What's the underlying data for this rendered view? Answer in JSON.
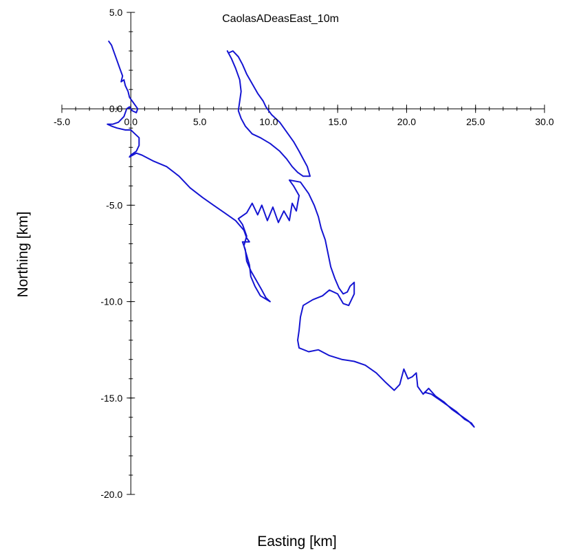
{
  "chart_data": {
    "type": "line",
    "title": "CaolasADeasEast_10m",
    "xlabel": "Easting [km]",
    "ylabel": "Northing [km]",
    "xlim": [
      -5.0,
      30.0
    ],
    "ylim": [
      -20.0,
      5.0
    ],
    "x_ticks": [
      -5.0,
      0.0,
      5.0,
      10.0,
      15.0,
      20.0,
      25.0,
      30.0
    ],
    "x_tick_labels": [
      "-5.0",
      "0.0",
      "5.0",
      "10.0",
      "15.0",
      "20.0",
      "25.0",
      "30.0"
    ],
    "y_ticks": [
      5.0,
      0.0,
      -5.0,
      -10.0,
      -15.0,
      -20.0
    ],
    "y_tick_labels": [
      "5.0",
      "0.0",
      "-5.0",
      "-10.0",
      "-15.0",
      "-20.0"
    ],
    "x_minor_step": 1.0,
    "y_minor_step": 1.0,
    "grid": false,
    "legend": "none",
    "series_color": "#1414d2",
    "series": [
      {
        "points": [
          [
            -1.6,
            3.5
          ],
          [
            -1.4,
            3.3
          ],
          [
            -1.2,
            2.9
          ],
          [
            -1.0,
            2.5
          ],
          [
            -0.8,
            2.1
          ],
          [
            -0.6,
            1.7
          ],
          [
            -0.7,
            1.4
          ],
          [
            -0.5,
            1.5
          ],
          [
            -0.4,
            1.2
          ],
          [
            -0.2,
            0.9
          ],
          [
            -0.1,
            0.6
          ],
          [
            0.1,
            0.4
          ],
          [
            0.3,
            0.2
          ],
          [
            0.5,
            0.0
          ],
          [
            0.4,
            -0.2
          ],
          [
            0.1,
            -0.1
          ],
          [
            -0.1,
            0.1
          ],
          [
            -0.3,
            0.0
          ],
          [
            -0.5,
            -0.4
          ],
          [
            -0.9,
            -0.7
          ],
          [
            -1.3,
            -0.8
          ],
          [
            -1.7,
            -0.8
          ],
          [
            -1.4,
            -0.9
          ],
          [
            -1.0,
            -1.0
          ],
          [
            -0.4,
            -1.1
          ],
          [
            0.0,
            -1.1
          ],
          [
            0.3,
            -1.3
          ],
          [
            0.6,
            -1.5
          ],
          [
            0.6,
            -1.9
          ],
          [
            0.4,
            -2.2
          ],
          [
            0.0,
            -2.4
          ],
          [
            -0.1,
            -2.5
          ],
          [
            0.4,
            -2.3
          ],
          [
            0.8,
            -2.4
          ],
          [
            1.6,
            -2.7
          ],
          [
            2.6,
            -3.0
          ],
          [
            3.5,
            -3.5
          ],
          [
            4.3,
            -4.1
          ],
          [
            5.2,
            -4.6
          ],
          [
            6.0,
            -5.0
          ],
          [
            6.8,
            -5.4
          ],
          [
            7.6,
            -5.8
          ],
          [
            8.2,
            -6.3
          ],
          [
            8.4,
            -6.7
          ],
          [
            8.6,
            -6.9
          ],
          [
            8.1,
            -6.9
          ],
          [
            8.3,
            -7.3
          ],
          [
            8.4,
            -7.9
          ],
          [
            8.7,
            -8.4
          ],
          [
            9.1,
            -8.9
          ],
          [
            9.5,
            -9.4
          ],
          [
            9.8,
            -9.8
          ],
          [
            10.1,
            -10.0
          ],
          [
            9.4,
            -9.7
          ],
          [
            9.0,
            -9.2
          ],
          [
            8.7,
            -8.7
          ],
          [
            8.6,
            -8.1
          ],
          [
            8.4,
            -7.6
          ],
          [
            8.2,
            -7.1
          ],
          [
            8.4,
            -6.6
          ],
          [
            8.1,
            -6.0
          ],
          [
            7.8,
            -5.7
          ],
          [
            8.4,
            -5.4
          ],
          [
            8.8,
            -4.9
          ],
          [
            9.2,
            -5.5
          ],
          [
            9.5,
            -5.0
          ],
          [
            9.9,
            -5.8
          ],
          [
            10.3,
            -5.1
          ],
          [
            10.7,
            -5.9
          ],
          [
            11.1,
            -5.3
          ],
          [
            11.5,
            -5.8
          ],
          [
            11.7,
            -4.9
          ],
          [
            12.0,
            -5.3
          ],
          [
            12.2,
            -4.5
          ],
          [
            11.8,
            -4.0
          ],
          [
            11.5,
            -3.7
          ],
          [
            12.3,
            -3.8
          ],
          [
            12.9,
            -4.4
          ],
          [
            13.3,
            -5.0
          ],
          [
            13.6,
            -5.6
          ],
          [
            13.8,
            -6.2
          ],
          [
            14.1,
            -6.8
          ],
          [
            14.3,
            -7.5
          ],
          [
            14.5,
            -8.2
          ],
          [
            14.8,
            -8.8
          ],
          [
            15.1,
            -9.3
          ],
          [
            15.4,
            -9.6
          ],
          [
            15.7,
            -9.5
          ],
          [
            15.9,
            -9.2
          ],
          [
            16.2,
            -9.0
          ],
          [
            16.2,
            -9.6
          ],
          [
            15.8,
            -10.2
          ],
          [
            15.4,
            -10.1
          ],
          [
            15.0,
            -9.6
          ],
          [
            14.4,
            -9.4
          ],
          [
            13.9,
            -9.7
          ],
          [
            13.2,
            -9.9
          ],
          [
            12.5,
            -10.2
          ],
          [
            12.3,
            -10.8
          ],
          [
            12.2,
            -11.5
          ],
          [
            12.1,
            -12.0
          ],
          [
            12.2,
            -12.4
          ],
          [
            12.9,
            -12.6
          ],
          [
            13.6,
            -12.5
          ],
          [
            14.4,
            -12.8
          ],
          [
            15.3,
            -13.0
          ],
          [
            16.2,
            -13.1
          ],
          [
            17.0,
            -13.3
          ],
          [
            17.8,
            -13.7
          ],
          [
            18.5,
            -14.2
          ],
          [
            19.1,
            -14.6
          ],
          [
            19.5,
            -14.3
          ],
          [
            19.8,
            -13.5
          ],
          [
            20.1,
            -14.0
          ],
          [
            20.4,
            -13.9
          ],
          [
            20.7,
            -13.7
          ],
          [
            20.8,
            -14.4
          ],
          [
            21.2,
            -14.8
          ],
          [
            21.6,
            -14.5
          ],
          [
            22.1,
            -14.9
          ],
          [
            22.7,
            -15.2
          ],
          [
            23.3,
            -15.6
          ],
          [
            23.9,
            -15.9
          ],
          [
            24.5,
            -16.2
          ],
          [
            24.9,
            -16.5
          ],
          [
            24.7,
            -16.3
          ],
          [
            24.2,
            -16.1
          ],
          [
            23.6,
            -15.7
          ],
          [
            23.0,
            -15.4
          ],
          [
            22.4,
            -15.1
          ],
          [
            21.8,
            -14.8
          ],
          [
            21.3,
            -14.7
          ]
        ]
      },
      {
        "points": [
          [
            7.0,
            3.0
          ],
          [
            7.3,
            2.6
          ],
          [
            7.6,
            2.1
          ],
          [
            7.9,
            1.5
          ],
          [
            8.0,
            0.9
          ],
          [
            7.9,
            0.4
          ],
          [
            7.8,
            -0.1
          ],
          [
            8.0,
            -0.5
          ],
          [
            8.3,
            -0.9
          ],
          [
            8.8,
            -1.3
          ],
          [
            9.4,
            -1.5
          ],
          [
            10.1,
            -1.8
          ],
          [
            10.8,
            -2.2
          ],
          [
            11.3,
            -2.6
          ],
          [
            11.7,
            -3.0
          ],
          [
            12.1,
            -3.3
          ],
          [
            12.5,
            -3.5
          ],
          [
            13.0,
            -3.5
          ],
          [
            12.8,
            -3.0
          ],
          [
            12.5,
            -2.6
          ],
          [
            12.2,
            -2.2
          ],
          [
            11.8,
            -1.7
          ],
          [
            11.3,
            -1.2
          ],
          [
            10.8,
            -0.7
          ],
          [
            10.2,
            -0.3
          ],
          [
            9.8,
            0.1
          ],
          [
            9.6,
            0.4
          ],
          [
            9.2,
            0.8
          ],
          [
            8.8,
            1.3
          ],
          [
            8.4,
            1.8
          ],
          [
            8.1,
            2.3
          ],
          [
            7.8,
            2.7
          ],
          [
            7.4,
            3.0
          ],
          [
            7.1,
            2.9
          ]
        ]
      }
    ]
  }
}
